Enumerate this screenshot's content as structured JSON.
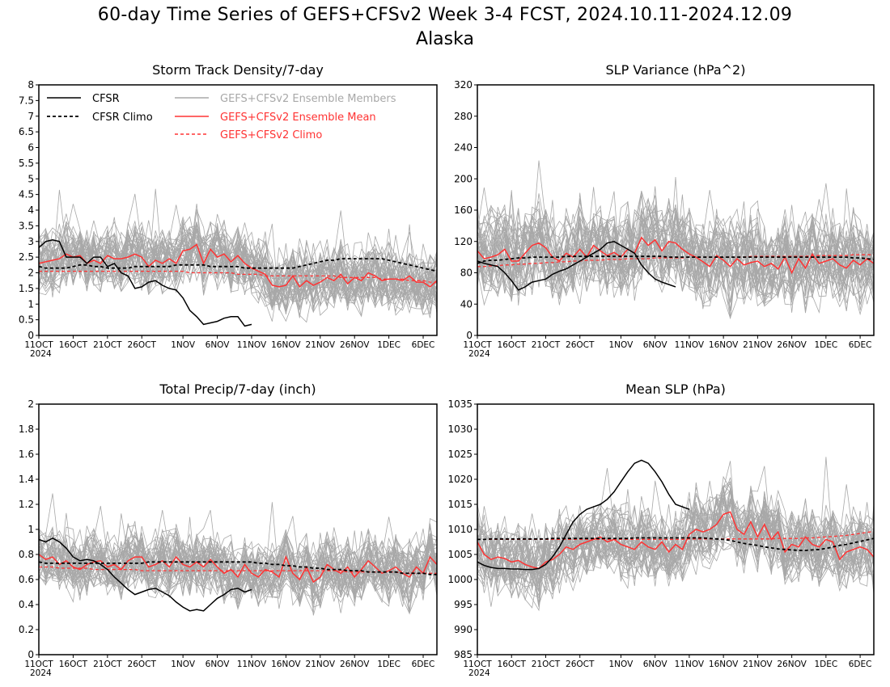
{
  "title": "60-day Time Series of GEFS+CFSv2 Week 3-4 FCST, 2024.10.11-2024.12.09",
  "subtitle": "Alaska",
  "x_ticks": [
    "11OCT",
    "16OCT",
    "21OCT",
    "26OCT",
    "1NOV",
    "6NOV",
    "11NOV",
    "16NOV",
    "21NOV",
    "26NOV",
    "1DEC",
    "6DEC"
  ],
  "x_year": "2024",
  "legend": {
    "cfsr": "CFSR",
    "cfsr_climo": "CFSR Climo",
    "members": "GEFS+CFSv2 Ensemble Members",
    "ens_mean": "GEFS+CFSv2 Ensemble Mean",
    "ens_climo": "GEFS+CFSv2 Climo"
  },
  "colors": {
    "cfsr": "#000000",
    "members": "#a8a8a8",
    "ens": "#ff3333",
    "axis": "#000000"
  },
  "chart_data": [
    {
      "type": "line",
      "title": "Storm Track Density/7-day",
      "x": "day index 0-58 (11OCT 2024 - 8DEC 2024)",
      "ylim": [
        0,
        8
      ],
      "yticks": [
        "0",
        "0.5",
        "1",
        "1.5",
        "2",
        "2.5",
        "3",
        "3.5",
        "4",
        "4.5",
        "5",
        "5.5",
        "6",
        "6.5",
        "7",
        "7.5",
        "8"
      ],
      "series": [
        {
          "name": "CFSR",
          "values": [
            2.8,
            3.0,
            3.05,
            3.0,
            2.5,
            2.5,
            2.5,
            2.3,
            2.5,
            2.5,
            2.2,
            2.3,
            2.0,
            1.9,
            1.5,
            1.55,
            1.7,
            1.75,
            1.6,
            1.5,
            1.45,
            1.2,
            0.8,
            0.6,
            0.35,
            0.4,
            0.45,
            0.55,
            0.6,
            0.6,
            0.3,
            0.35
          ]
        },
        {
          "name": "CFSR Climo",
          "values": [
            2.2,
            2.15,
            2.15,
            2.15,
            2.15,
            2.2,
            2.25,
            2.25,
            2.2,
            2.2,
            2.15,
            2.15,
            2.15,
            2.15,
            2.2,
            2.2,
            2.2,
            2.2,
            2.2,
            2.2,
            2.25,
            2.25,
            2.25,
            2.25,
            2.25,
            2.2,
            2.2,
            2.2,
            2.2,
            2.2,
            2.15,
            2.15,
            2.15,
            2.15,
            2.15,
            2.15,
            2.15,
            2.15,
            2.2,
            2.25,
            2.3,
            2.35,
            2.4,
            2.4,
            2.45,
            2.45,
            2.45,
            2.45,
            2.45,
            2.45,
            2.45,
            2.4,
            2.35,
            2.3,
            2.25,
            2.2,
            2.15,
            2.1,
            2.05
          ]
        },
        {
          "name": "GEFS+CFSv2 Ensemble Mean",
          "values": [
            2.3,
            2.35,
            2.4,
            2.45,
            2.6,
            2.5,
            2.55,
            2.3,
            2.4,
            2.3,
            2.55,
            2.45,
            2.45,
            2.5,
            2.6,
            2.5,
            2.2,
            2.4,
            2.3,
            2.45,
            2.3,
            2.7,
            2.75,
            2.9,
            2.3,
            2.75,
            2.5,
            2.6,
            2.35,
            2.55,
            2.3,
            2.15,
            2.05,
            1.95,
            1.6,
            1.55,
            1.6,
            1.9,
            1.55,
            1.75,
            1.6,
            1.7,
            1.85,
            1.75,
            1.95,
            1.65,
            1.85,
            1.75,
            2.0,
            1.9,
            1.75,
            1.8,
            1.8,
            1.75,
            1.9,
            1.7,
            1.7,
            1.55,
            1.75
          ]
        },
        {
          "name": "GEFS+CFSv2 Climo",
          "values": [
            2.05,
            2.05,
            2.05,
            2.05,
            2.05,
            2.05,
            2.05,
            2.05,
            2.05,
            2.05,
            2.05,
            2.05,
            2.05,
            2.05,
            2.05,
            2.05,
            2.05,
            2.05,
            2.05,
            2.05,
            2.05,
            2.05,
            2.0,
            2.0,
            2.0,
            2.0,
            2.0,
            2.0,
            2.0,
            1.95,
            1.95,
            1.95,
            1.95,
            1.9,
            1.9,
            1.9,
            1.9,
            1.9,
            1.9,
            1.9,
            1.9,
            1.9,
            1.9,
            1.9,
            1.85,
            1.85,
            1.85,
            1.85,
            1.85,
            1.85,
            1.8,
            1.8,
            1.8,
            1.8,
            1.75,
            1.75,
            1.75,
            1.7,
            1.7
          ]
        }
      ],
      "members": {
        "count": 40,
        "center_series": "GEFS+CFSv2 Ensemble Mean",
        "spread": 0.9,
        "min": 0,
        "max": 6
      }
    },
    {
      "type": "line",
      "title": "SLP Variance (hPa^2)",
      "x": "day index 0-58 (11OCT 2024 - 8DEC 2024)",
      "ylim": [
        0,
        320
      ],
      "yticks": [
        "0",
        "40",
        "80",
        "120",
        "160",
        "200",
        "240",
        "280",
        "320"
      ],
      "series": [
        {
          "name": "CFSR",
          "values": [
            95,
            92,
            90,
            88,
            80,
            70,
            58,
            62,
            68,
            70,
            72,
            78,
            82,
            85,
            90,
            95,
            100,
            105,
            110,
            118,
            120,
            115,
            110,
            105,
            90,
            80,
            72,
            68,
            65,
            62
          ]
        },
        {
          "name": "CFSR Climo",
          "values": [
            92,
            95,
            96,
            96,
            97,
            98,
            99,
            99,
            100,
            100,
            100,
            100,
            100,
            101,
            101,
            101,
            101,
            101,
            101,
            101,
            101,
            101,
            101,
            101,
            101,
            101,
            101,
            101,
            100,
            100,
            100,
            100,
            100,
            100,
            100,
            100,
            100,
            100,
            100,
            100,
            100,
            100,
            100,
            100,
            100,
            100,
            100,
            100,
            100,
            100,
            100,
            100,
            100,
            100,
            100,
            99,
            99,
            98,
            97
          ]
        },
        {
          "name": "GEFS+CFSv2 Ensemble Mean",
          "values": [
            108,
            98,
            100,
            103,
            110,
            95,
            95,
            105,
            115,
            118,
            112,
            100,
            95,
            105,
            100,
            110,
            100,
            115,
            108,
            102,
            106,
            100,
            110,
            105,
            125,
            115,
            122,
            108,
            120,
            118,
            110,
            104,
            100,
            94,
            88,
            102,
            96,
            88,
            98,
            90,
            93,
            95,
            88,
            92,
            85,
            100,
            80,
            98,
            86,
            104,
            92,
            95,
            98,
            90,
            86,
            96,
            90,
            98,
            92
          ]
        },
        {
          "name": "GEFS+CFSv2 Climo",
          "values": [
            88,
            88,
            89,
            89,
            90,
            90,
            91,
            91,
            92,
            92,
            93,
            93,
            94,
            94,
            95,
            95,
            96,
            96,
            96,
            97,
            97,
            97,
            98,
            98,
            98,
            98,
            99,
            99,
            99,
            99,
            99,
            100,
            100,
            100,
            100,
            100,
            100,
            100,
            100,
            100,
            101,
            101,
            101,
            101,
            101,
            101,
            101,
            101,
            101,
            102,
            102,
            102,
            102,
            102,
            102,
            103,
            103,
            103,
            103
          ]
        }
      ],
      "members": {
        "count": 40,
        "center_series": "GEFS+CFSv2 Ensemble Mean",
        "spread": 50,
        "min": 20,
        "max": 320
      }
    },
    {
      "type": "line",
      "title": "Total Precip/7-day (inch)",
      "x": "day index 0-58 (11OCT 2024 - 8DEC 2024)",
      "ylim": [
        0,
        2
      ],
      "yticks": [
        "0",
        "0.2",
        "0.4",
        "0.6",
        "0.8",
        "1",
        "1.2",
        "1.4",
        "1.6",
        "1.8",
        "2"
      ],
      "series": [
        {
          "name": "CFSR",
          "values": [
            0.92,
            0.9,
            0.93,
            0.9,
            0.85,
            0.78,
            0.75,
            0.76,
            0.75,
            0.72,
            0.68,
            0.62,
            0.57,
            0.52,
            0.48,
            0.5,
            0.52,
            0.53,
            0.5,
            0.47,
            0.42,
            0.38,
            0.35,
            0.36,
            0.35,
            0.4,
            0.45,
            0.48,
            0.52,
            0.53,
            0.5,
            0.52
          ]
        },
        {
          "name": "CFSR Climo",
          "values": [
            0.74,
            0.73,
            0.73,
            0.73,
            0.73,
            0.73,
            0.73,
            0.73,
            0.73,
            0.73,
            0.73,
            0.73,
            0.73,
            0.73,
            0.73,
            0.73,
            0.74,
            0.74,
            0.74,
            0.74,
            0.74,
            0.74,
            0.74,
            0.74,
            0.74,
            0.74,
            0.74,
            0.74,
            0.74,
            0.74,
            0.74,
            0.74,
            0.73,
            0.73,
            0.72,
            0.72,
            0.71,
            0.71,
            0.7,
            0.7,
            0.69,
            0.69,
            0.68,
            0.68,
            0.68,
            0.67,
            0.67,
            0.67,
            0.66,
            0.66,
            0.66,
            0.66,
            0.66,
            0.65,
            0.65,
            0.65,
            0.65,
            0.64,
            0.64
          ]
        },
        {
          "name": "GEFS+CFSv2 Ensemble Mean",
          "values": [
            0.8,
            0.76,
            0.78,
            0.72,
            0.75,
            0.7,
            0.68,
            0.72,
            0.74,
            0.75,
            0.7,
            0.72,
            0.68,
            0.75,
            0.78,
            0.78,
            0.7,
            0.72,
            0.75,
            0.7,
            0.78,
            0.72,
            0.7,
            0.74,
            0.7,
            0.76,
            0.7,
            0.65,
            0.68,
            0.62,
            0.72,
            0.65,
            0.62,
            0.68,
            0.66,
            0.62,
            0.78,
            0.65,
            0.6,
            0.7,
            0.58,
            0.62,
            0.72,
            0.68,
            0.65,
            0.7,
            0.62,
            0.68,
            0.75,
            0.7,
            0.65,
            0.67,
            0.7,
            0.65,
            0.62,
            0.7,
            0.65,
            0.78,
            0.72
          ]
        },
        {
          "name": "GEFS+CFSv2 Climo",
          "values": [
            0.7,
            0.7,
            0.7,
            0.69,
            0.69,
            0.69,
            0.69,
            0.69,
            0.68,
            0.68,
            0.68,
            0.68,
            0.68,
            0.68,
            0.68,
            0.67,
            0.67,
            0.67,
            0.67,
            0.67,
            0.67,
            0.67,
            0.67,
            0.67,
            0.67,
            0.67,
            0.67,
            0.67,
            0.67,
            0.67,
            0.67,
            0.67,
            0.67,
            0.67,
            0.67,
            0.67,
            0.67,
            0.67,
            0.67,
            0.67,
            0.67,
            0.67,
            0.67,
            0.67,
            0.67,
            0.66,
            0.66,
            0.66,
            0.66,
            0.66,
            0.66,
            0.66,
            0.66,
            0.65,
            0.65,
            0.65,
            0.65,
            0.65,
            0.65
          ]
        }
      ],
      "members": {
        "count": 40,
        "center_series": "GEFS+CFSv2 Ensemble Mean",
        "spread": 0.22,
        "min": 0.1,
        "max": 1.55
      }
    },
    {
      "type": "line",
      "title": "Mean SLP (hPa)",
      "x": "day index 0-58 (11OCT 2024 - 8DEC 2024)",
      "ylim": [
        985,
        1035
      ],
      "yticks": [
        "985",
        "990",
        "995",
        "1000",
        "1005",
        "1010",
        "1015",
        "1020",
        "1025",
        "1030",
        "1035"
      ],
      "series": [
        {
          "name": "CFSR",
          "values": [
            1003.5,
            1002.8,
            1002.4,
            1002.2,
            1002.2,
            1002.1,
            1002.1,
            1002.0,
            1002.0,
            1002.2,
            1003.0,
            1004.5,
            1006.5,
            1009.0,
            1011.5,
            1013.0,
            1014.0,
            1014.5,
            1015.0,
            1016.0,
            1017.5,
            1019.5,
            1021.5,
            1023.2,
            1023.8,
            1023.2,
            1021.5,
            1019.5,
            1017.0,
            1015.0,
            1014.5,
            1014.0
          ]
        },
        {
          "name": "CFSR Climo",
          "values": [
            1008.0,
            1008.0,
            1008.1,
            1008.1,
            1008.1,
            1008.1,
            1008.1,
            1008.1,
            1008.1,
            1008.1,
            1008.1,
            1008.2,
            1008.2,
            1008.2,
            1008.2,
            1008.2,
            1008.2,
            1008.2,
            1008.2,
            1008.2,
            1008.2,
            1008.2,
            1008.2,
            1008.3,
            1008.3,
            1008.3,
            1008.3,
            1008.3,
            1008.3,
            1008.3,
            1008.3,
            1008.3,
            1008.3,
            1008.3,
            1008.2,
            1008.1,
            1008.0,
            1007.8,
            1007.5,
            1007.2,
            1007.0,
            1006.8,
            1006.5,
            1006.3,
            1006.1,
            1006.0,
            1005.9,
            1005.8,
            1005.8,
            1005.9,
            1006.0,
            1006.2,
            1006.5,
            1006.8,
            1007.0,
            1007.3,
            1007.6,
            1007.9,
            1008.2
          ]
        },
        {
          "name": "GEFS+CFSv2 Ensemble Mean",
          "values": [
            1007.5,
            1005.0,
            1004.0,
            1004.5,
            1004.2,
            1003.5,
            1003.8,
            1003.0,
            1002.5,
            1002.2,
            1003.5,
            1004.0,
            1005.0,
            1006.5,
            1006.0,
            1007.0,
            1007.5,
            1008.0,
            1008.5,
            1007.5,
            1008.0,
            1007.0,
            1006.5,
            1006.0,
            1007.5,
            1006.5,
            1006.0,
            1007.5,
            1005.5,
            1007.0,
            1006.0,
            1009.0,
            1010.0,
            1009.5,
            1010.0,
            1011.0,
            1013.0,
            1013.5,
            1010.0,
            1009.0,
            1011.5,
            1008.5,
            1011.0,
            1008.0,
            1009.5,
            1005.5,
            1007.0,
            1006.5,
            1008.5,
            1007.0,
            1006.5,
            1008.0,
            1007.5,
            1004.0,
            1005.5,
            1006.0,
            1006.5,
            1006.0,
            1004.5
          ]
        },
        {
          "name": "GEFS+CFSv2 Climo",
          "values": [
            1008.0,
            1008.0,
            1008.0,
            1008.0,
            1008.0,
            1008.0,
            1008.0,
            1008.0,
            1008.0,
            1008.0,
            1008.0,
            1008.0,
            1008.0,
            1008.0,
            1008.0,
            1008.0,
            1008.0,
            1008.0,
            1008.0,
            1008.0,
            1008.0,
            1008.0,
            1008.0,
            1008.0,
            1008.0,
            1008.0,
            1008.0,
            1008.0,
            1008.0,
            1008.0,
            1008.0,
            1008.1,
            1008.1,
            1008.1,
            1008.1,
            1008.1,
            1008.1,
            1008.1,
            1008.1,
            1008.1,
            1008.1,
            1008.1,
            1008.1,
            1008.1,
            1008.2,
            1008.2,
            1008.2,
            1008.2,
            1008.3,
            1008.3,
            1008.4,
            1008.5,
            1008.6,
            1008.7,
            1008.8,
            1009.0,
            1009.2,
            1009.4,
            1009.6
          ]
        }
      ],
      "members": {
        "count": 40,
        "center_series": "GEFS+CFSv2 Ensemble Mean",
        "spread": 6.5,
        "min": 988,
        "max": 1032
      }
    }
  ]
}
